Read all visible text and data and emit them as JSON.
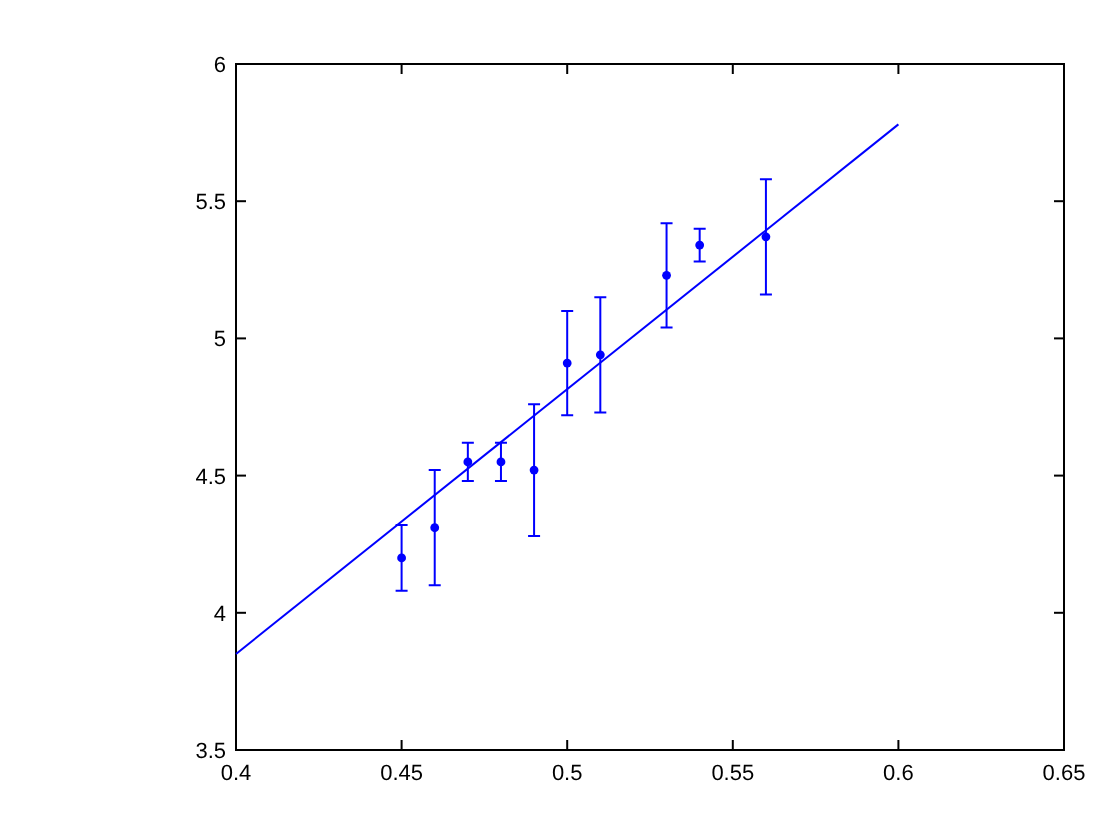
{
  "chart_data": {
    "type": "scatter",
    "xlim": [
      0.4,
      0.65
    ],
    "xticks": [
      0.4,
      0.45,
      0.5,
      0.55,
      0.6,
      0.65
    ],
    "ylim": [
      3.5,
      6
    ],
    "yticks": [
      3.5,
      4,
      4.5,
      5,
      5.5,
      6
    ],
    "grid": false,
    "series": [
      {
        "marker": "circle",
        "color": "#0000ff",
        "x": [
          0.45,
          0.46,
          0.47,
          0.48,
          0.49,
          0.5,
          0.51,
          0.53,
          0.54,
          0.56
        ],
        "values": [
          4.2,
          4.31,
          4.55,
          4.55,
          4.52,
          4.91,
          4.94,
          5.23,
          5.34,
          5.37
        ],
        "errors": [
          0.12,
          0.21,
          0.07,
          0.07,
          0.24,
          0.19,
          0.21,
          0.19,
          0.06,
          0.21
        ]
      },
      {
        "type": "line",
        "marker": "none",
        "color": "#0000ff",
        "x": [
          0.4,
          0.6
        ],
        "values": [
          3.85,
          5.78
        ]
      }
    ]
  }
}
